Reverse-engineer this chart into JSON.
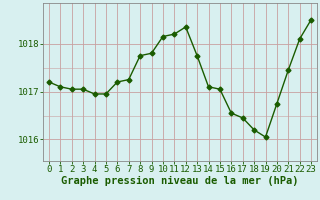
{
  "x": [
    0,
    1,
    2,
    3,
    4,
    5,
    6,
    7,
    8,
    9,
    10,
    11,
    12,
    13,
    14,
    15,
    16,
    17,
    18,
    19,
    20,
    21,
    22,
    23
  ],
  "y": [
    1017.2,
    1017.1,
    1017.05,
    1017.05,
    1016.95,
    1016.95,
    1017.2,
    1017.25,
    1017.75,
    1017.8,
    1018.15,
    1018.2,
    1018.35,
    1017.75,
    1017.1,
    1017.05,
    1016.55,
    1016.45,
    1016.2,
    1016.05,
    1016.75,
    1017.45,
    1018.1,
    1018.5
  ],
  "line_color": "#1a5c00",
  "marker": "D",
  "marker_size": 2.5,
  "bg_color": "#d8f0f0",
  "grid_color_v": "#c8a0a0",
  "grid_color_h": "#c8a0a0",
  "xlabel": "Graphe pression niveau de la mer (hPa)",
  "xlabel_color": "#1a5c00",
  "xlabel_fontsize": 7.5,
  "tick_color": "#1a5c00",
  "tick_fontsize": 6.5,
  "ytick_labels": [
    "1016",
    "1017",
    "1018"
  ],
  "ytick_values": [
    1016,
    1017,
    1018
  ],
  "ylim": [
    1015.55,
    1018.85
  ],
  "xlim": [
    -0.5,
    23.5
  ],
  "xtick_values": [
    0,
    1,
    2,
    3,
    4,
    5,
    6,
    7,
    8,
    9,
    10,
    11,
    12,
    13,
    14,
    15,
    16,
    17,
    18,
    19,
    20,
    21,
    22,
    23
  ],
  "xtick_labels": [
    "0",
    "1",
    "2",
    "3",
    "4",
    "5",
    "6",
    "7",
    "8",
    "9",
    "10",
    "11",
    "12",
    "13",
    "14",
    "15",
    "16",
    "17",
    "18",
    "19",
    "20",
    "21",
    "22",
    "23"
  ]
}
